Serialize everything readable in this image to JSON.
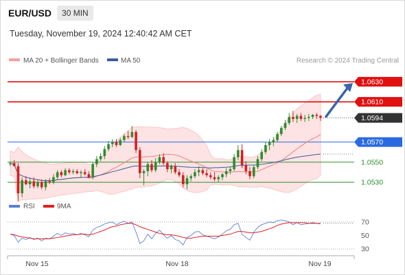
{
  "header": {
    "symbol": "EUR/USD",
    "timeframe": "30 MIN",
    "timestamp": "Tuesday, November 19, 2024 12:40:42 AM CET"
  },
  "legend": {
    "ma20_label": "MA 20 + Bollinger Bands",
    "ma50_label": "MA 50",
    "rsi_label": "RSI",
    "ma9_label": "9MA",
    "credit": "Research © 2024 Trading Central",
    "colors": {
      "ma20": "#f08080",
      "ma50": "#3a5a9c",
      "rsi": "#5b7fd6",
      "ma9": "#e02020"
    }
  },
  "chart_data": {
    "type": "candlestick",
    "price_axis": {
      "range": [
        1.0515,
        1.0645
      ]
    },
    "x_ticks": [
      "Nov 15",
      "Nov 18",
      "Nov 19"
    ],
    "levels": [
      {
        "label": "1.0630",
        "value": 1.063,
        "style": "resistance",
        "color": "#e01010"
      },
      {
        "label": "1.0610",
        "value": 1.061,
        "style": "resistance",
        "color": "#e01010"
      },
      {
        "label": "1.0594",
        "value": 1.0594,
        "style": "last-price",
        "color": "#333333"
      },
      {
        "label": "1.0570",
        "value": 1.057,
        "style": "pivot",
        "color": "#2a6ae0"
      },
      {
        "label": "1.0550",
        "value": 1.055,
        "style": "support",
        "color": "#2e8b2e"
      },
      {
        "label": "1.0530",
        "value": 1.053,
        "style": "support",
        "color": "#2e8b2e"
      }
    ],
    "candles": [
      [
        1.0548,
        1.0551,
        1.0546,
        1.0549
      ],
      [
        1.0549,
        1.0552,
        1.0546,
        1.0546
      ],
      [
        1.0546,
        1.0549,
        1.0511,
        1.0519
      ],
      [
        1.0519,
        1.0535,
        1.0515,
        1.0532
      ],
      [
        1.0532,
        1.0536,
        1.0527,
        1.0528
      ],
      [
        1.0528,
        1.0534,
        1.0524,
        1.0531
      ],
      [
        1.0531,
        1.0535,
        1.0524,
        1.0526
      ],
      [
        1.0526,
        1.0532,
        1.0524,
        1.053
      ],
      [
        1.053,
        1.0533,
        1.0523,
        1.0525
      ],
      [
        1.0525,
        1.0533,
        1.0522,
        1.0531
      ],
      [
        1.0531,
        1.0534,
        1.0528,
        1.053
      ],
      [
        1.053,
        1.0538,
        1.0528,
        1.0535
      ],
      [
        1.0535,
        1.0542,
        1.0533,
        1.054
      ],
      [
        1.054,
        1.0542,
        1.0535,
        1.0537
      ],
      [
        1.0537,
        1.0544,
        1.0536,
        1.0542
      ],
      [
        1.0542,
        1.0544,
        1.0538,
        1.054
      ],
      [
        1.054,
        1.0543,
        1.0538,
        1.0541
      ],
      [
        1.0541,
        1.0543,
        1.0538,
        1.0539
      ],
      [
        1.0539,
        1.0542,
        1.0535,
        1.054
      ],
      [
        1.054,
        1.0543,
        1.0537,
        1.0538
      ],
      [
        1.0538,
        1.0541,
        1.0534,
        1.0535
      ],
      [
        1.0535,
        1.055,
        1.0533,
        1.0548
      ],
      [
        1.0548,
        1.0556,
        1.0545,
        1.0553
      ],
      [
        1.0553,
        1.0559,
        1.0551,
        1.0556
      ],
      [
        1.0556,
        1.0566,
        1.0553,
        1.0563
      ],
      [
        1.0563,
        1.0571,
        1.0561,
        1.0568
      ],
      [
        1.0568,
        1.0573,
        1.0565,
        1.057
      ],
      [
        1.057,
        1.0573,
        1.0565,
        1.0567
      ],
      [
        1.0567,
        1.0574,
        1.0566,
        1.0572
      ],
      [
        1.0572,
        1.0578,
        1.057,
        1.0576
      ],
      [
        1.0576,
        1.0581,
        1.0573,
        1.0575
      ],
      [
        1.0575,
        1.0586,
        1.0574,
        1.058
      ],
      [
        1.058,
        1.0582,
        1.0559,
        1.0562
      ],
      [
        1.0562,
        1.0565,
        1.0534,
        1.0539
      ],
      [
        1.0539,
        1.0543,
        1.0527,
        1.0541
      ],
      [
        1.0541,
        1.055,
        1.0536,
        1.0548
      ],
      [
        1.0548,
        1.0552,
        1.054,
        1.0542
      ],
      [
        1.0542,
        1.0554,
        1.054,
        1.055
      ],
      [
        1.055,
        1.0558,
        1.0548,
        1.0555
      ],
      [
        1.0555,
        1.0559,
        1.0547,
        1.0549
      ],
      [
        1.0549,
        1.0551,
        1.054,
        1.0543
      ],
      [
        1.0543,
        1.0548,
        1.0539,
        1.0546
      ],
      [
        1.0546,
        1.0549,
        1.0538,
        1.054
      ],
      [
        1.054,
        1.0543,
        1.0535,
        1.0537
      ],
      [
        1.0537,
        1.054,
        1.0525,
        1.0528
      ],
      [
        1.0528,
        1.0537,
        1.0523,
        1.0534
      ],
      [
        1.0534,
        1.0538,
        1.0531,
        1.0536
      ],
      [
        1.0536,
        1.0543,
        1.0534,
        1.054
      ],
      [
        1.054,
        1.0546,
        1.0536,
        1.0542
      ],
      [
        1.0542,
        1.0544,
        1.0537,
        1.0539
      ],
      [
        1.0539,
        1.0543,
        1.0535,
        1.0537
      ],
      [
        1.0537,
        1.054,
        1.0533,
        1.0535
      ],
      [
        1.0535,
        1.054,
        1.0531,
        1.0533
      ],
      [
        1.0533,
        1.0537,
        1.053,
        1.0535
      ],
      [
        1.0535,
        1.0539,
        1.0532,
        1.0538
      ],
      [
        1.0538,
        1.0544,
        1.0535,
        1.0541
      ],
      [
        1.0541,
        1.0545,
        1.0538,
        1.0543
      ],
      [
        1.0543,
        1.0558,
        1.0541,
        1.0555
      ],
      [
        1.0555,
        1.0567,
        1.0552,
        1.0562
      ],
      [
        1.0562,
        1.0568,
        1.0544,
        1.0547
      ],
      [
        1.0547,
        1.0551,
        1.0538,
        1.0541
      ],
      [
        1.0541,
        1.0545,
        1.0533,
        1.0536
      ],
      [
        1.0536,
        1.0547,
        1.0534,
        1.0545
      ],
      [
        1.0545,
        1.0556,
        1.0543,
        1.0553
      ],
      [
        1.0553,
        1.0563,
        1.0551,
        1.056
      ],
      [
        1.056,
        1.057,
        1.0558,
        1.0567
      ],
      [
        1.0567,
        1.0573,
        1.0562,
        1.057
      ],
      [
        1.057,
        1.0575,
        1.0566,
        1.0572
      ],
      [
        1.0572,
        1.058,
        1.057,
        1.0578
      ],
      [
        1.0578,
        1.0586,
        1.0576,
        1.0584
      ],
      [
        1.0584,
        1.0592,
        1.0582,
        1.0589
      ],
      [
        1.0589,
        1.0599,
        1.0587,
        1.0595
      ],
      [
        1.0595,
        1.0601,
        1.059,
        1.0593
      ],
      [
        1.0593,
        1.0598,
        1.0589,
        1.0596
      ],
      [
        1.0596,
        1.0599,
        1.0591,
        1.0593
      ],
      [
        1.0593,
        1.0597,
        1.059,
        1.0594
      ],
      [
        1.0594,
        1.0598,
        1.0591,
        1.0595
      ],
      [
        1.0595,
        1.0598,
        1.0593,
        1.0597
      ],
      [
        1.0597,
        1.0599,
        1.0593,
        1.0596
      ],
      [
        1.0596,
        1.0597,
        1.0591,
        1.0594
      ]
    ],
    "rsi": {
      "axis_ticks": [
        70,
        50,
        30
      ],
      "range": [
        25,
        75
      ],
      "rsi_values": [
        52,
        50,
        40,
        46,
        44,
        47,
        44,
        46,
        42,
        46,
        45,
        49,
        53,
        50,
        54,
        52,
        53,
        51,
        53,
        51,
        48,
        58,
        62,
        64,
        67,
        69,
        70,
        66,
        69,
        71,
        68,
        70,
        55,
        38,
        42,
        52,
        45,
        53,
        58,
        51,
        46,
        50,
        44,
        42,
        36,
        47,
        50,
        55,
        56,
        51,
        49,
        47,
        45,
        48,
        52,
        57,
        59,
        66,
        68,
        52,
        47,
        43,
        55,
        62,
        66,
        68,
        70,
        69,
        72,
        73,
        72,
        70,
        66,
        69,
        66,
        67,
        68,
        69,
        68,
        67
      ],
      "ma9_values": [
        52,
        51,
        49,
        48,
        47,
        46,
        45,
        45,
        45,
        45,
        45,
        46,
        47,
        48,
        49,
        50,
        51,
        51,
        52,
        52,
        51,
        52,
        54,
        56,
        58,
        61,
        63,
        64,
        66,
        67,
        68,
        68,
        66,
        63,
        61,
        59,
        57,
        55,
        53,
        52,
        51,
        51,
        50,
        49,
        47,
        46,
        46,
        47,
        48,
        49,
        49,
        49,
        49,
        49,
        50,
        51,
        52,
        54,
        56,
        56,
        55,
        54,
        54,
        55,
        56,
        58,
        60,
        62,
        65,
        67,
        68,
        69,
        69,
        69,
        69,
        69,
        68,
        68,
        68,
        68
      ]
    }
  }
}
